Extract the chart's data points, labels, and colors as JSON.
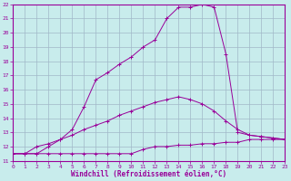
{
  "xlabel": "Windchill (Refroidissement éolien,°C)",
  "background_color": "#c8ecec",
  "grid_color": "#a0b8c8",
  "line_color": "#990099",
  "x_min": 0,
  "x_max": 23,
  "y_min": 11,
  "y_max": 22,
  "line1_x": [
    0,
    1,
    2,
    3,
    4,
    5,
    6,
    7,
    8,
    9,
    10,
    11,
    12,
    13,
    14,
    15,
    16,
    17,
    18,
    19,
    20,
    21,
    22,
    23
  ],
  "line1_y": [
    11.5,
    11.5,
    11.5,
    11.5,
    11.5,
    11.5,
    11.5,
    11.5,
    11.5,
    11.5,
    11.5,
    11.8,
    12.0,
    12.0,
    12.1,
    12.1,
    12.2,
    12.2,
    12.3,
    12.3,
    12.5,
    12.5,
    12.5,
    12.5
  ],
  "line2_x": [
    0,
    1,
    2,
    3,
    4,
    5,
    6,
    7,
    8,
    9,
    10,
    11,
    12,
    13,
    14,
    15,
    16,
    17,
    18,
    19,
    20,
    21,
    22,
    23
  ],
  "line2_y": [
    11.5,
    11.5,
    12.0,
    12.2,
    12.5,
    12.8,
    13.2,
    13.5,
    13.8,
    14.2,
    14.5,
    14.8,
    15.1,
    15.3,
    15.5,
    15.3,
    15.0,
    14.5,
    13.8,
    13.2,
    12.8,
    12.7,
    12.6,
    12.5
  ],
  "line3_x": [
    0,
    1,
    2,
    3,
    4,
    5,
    6,
    7,
    8,
    9,
    10,
    11,
    12,
    13,
    14,
    15,
    16,
    17,
    18,
    19,
    20,
    21,
    22,
    23
  ],
  "line3_y": [
    11.5,
    11.5,
    11.5,
    12.0,
    12.5,
    13.2,
    14.8,
    16.7,
    17.2,
    17.8,
    18.3,
    19.0,
    19.5,
    21.0,
    21.8,
    21.8,
    22.0,
    21.8,
    18.5,
    13.0,
    12.8,
    12.7,
    12.6,
    12.5
  ]
}
